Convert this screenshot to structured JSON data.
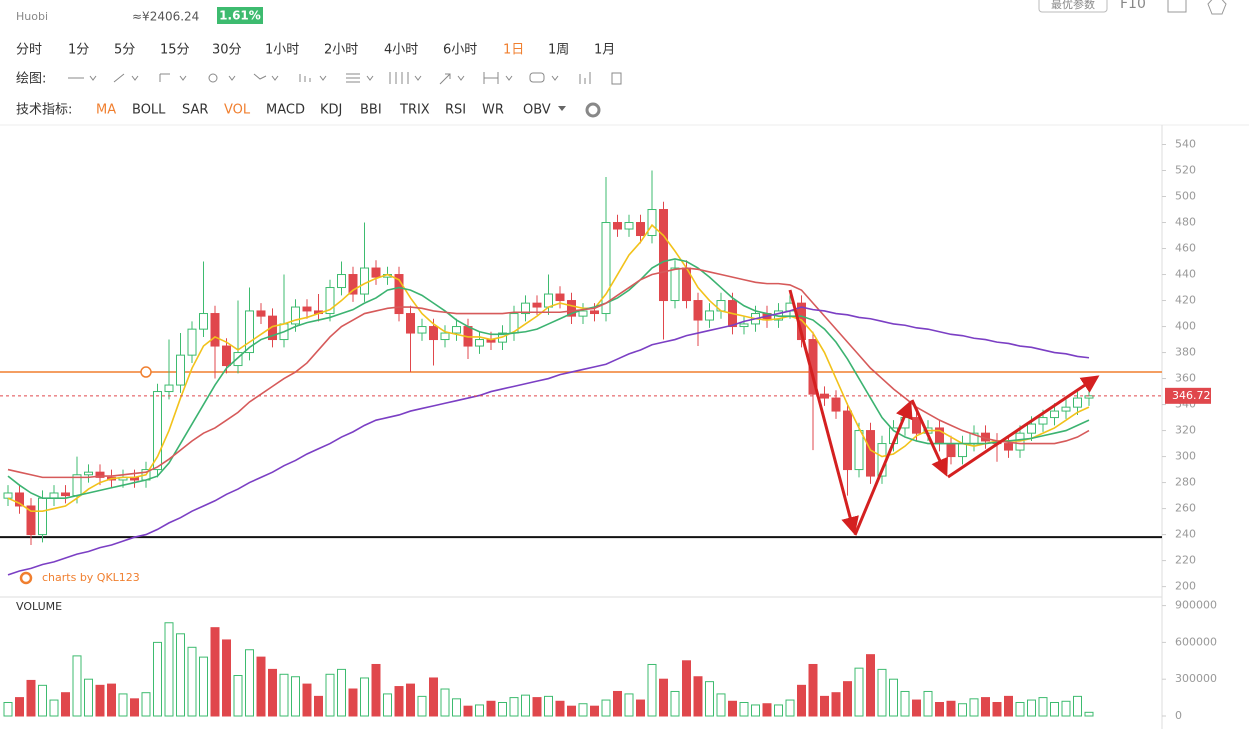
{
  "header": {
    "exchange": "Huobi",
    "price_cny": "≈¥2406.24",
    "change": "1.61%",
    "button": "最优参数",
    "f10": "F10"
  },
  "toolbar": {
    "periods": [
      "分时",
      "1分",
      "5分",
      "15分",
      "30分",
      "1小时",
      "2小时",
      "4小时",
      "6小时",
      "1日",
      "1周",
      "1月"
    ],
    "active_period": 9,
    "draw_label": "绘图:",
    "indicator_label": "技术指标:",
    "indicators": [
      "MA",
      "BOLL",
      "SAR",
      "VOL",
      "MACD",
      "KDJ",
      "BBI",
      "TRIX",
      "RSI",
      "WR",
      "OBV"
    ],
    "active_indicators": [
      0,
      3
    ]
  },
  "chart_data": [
    {
      "type": "candlestick",
      "watermark": "charts by QKL123",
      "up_color": "#3dbb6f",
      "down_color": "#e0474c",
      "ylim": [
        192,
        555
      ],
      "yticks": [
        200,
        220,
        240,
        260,
        280,
        300,
        320,
        340,
        360,
        380,
        400,
        420,
        440,
        460,
        480,
        500,
        520,
        540
      ],
      "grid": false,
      "open": [
        268,
        272,
        262,
        240,
        268,
        272,
        270,
        286,
        288,
        284,
        282,
        284,
        282,
        290,
        350,
        355,
        378,
        398,
        410,
        385,
        370,
        380,
        412,
        408,
        390,
        402,
        415,
        412,
        410,
        430,
        440,
        425,
        445,
        438,
        440,
        410,
        395,
        400,
        390,
        395,
        400,
        385,
        390,
        388,
        395,
        410,
        418,
        415,
        425,
        420,
        408,
        412,
        410,
        480,
        475,
        480,
        470,
        490,
        420,
        445,
        420,
        405,
        412,
        420,
        400,
        402,
        410,
        405,
        412,
        418,
        390,
        348,
        345,
        335,
        290,
        320,
        285,
        310,
        322,
        330,
        318,
        322,
        310,
        300,
        310,
        318,
        312,
        310,
        305,
        318,
        325,
        330,
        335,
        338,
        345
      ],
      "high": [
        278,
        278,
        268,
        274,
        278,
        278,
        300,
        294,
        294,
        290,
        290,
        290,
        296,
        356,
        390,
        395,
        404,
        450,
        416,
        391,
        420,
        430,
        418,
        414,
        440,
        421,
        421,
        425,
        436,
        450,
        446,
        480,
        451,
        446,
        446,
        416,
        406,
        406,
        401,
        406,
        406,
        396,
        396,
        401,
        416,
        424,
        424,
        440,
        431,
        426,
        418,
        418,
        515,
        486,
        486,
        486,
        520,
        496,
        451,
        451,
        426,
        418,
        426,
        426,
        408,
        416,
        416,
        418,
        424,
        424,
        396,
        354,
        351,
        341,
        326,
        326,
        316,
        328,
        336,
        336,
        328,
        328,
        316,
        316,
        324,
        324,
        318,
        316,
        324,
        331,
        336,
        341,
        344,
        351,
        352
      ],
      "low": [
        262,
        256,
        232,
        234,
        262,
        264,
        264,
        280,
        278,
        276,
        276,
        276,
        276,
        284,
        344,
        349,
        372,
        392,
        360,
        364,
        364,
        374,
        402,
        384,
        384,
        396,
        406,
        404,
        404,
        424,
        419,
        419,
        432,
        432,
        404,
        365,
        389,
        370,
        384,
        389,
        375,
        379,
        382,
        382,
        389,
        404,
        409,
        409,
        414,
        402,
        402,
        404,
        404,
        469,
        469,
        464,
        464,
        390,
        414,
        414,
        385,
        399,
        406,
        394,
        394,
        396,
        399,
        399,
        406,
        384,
        305,
        339,
        329,
        270,
        284,
        279,
        279,
        304,
        316,
        312,
        312,
        304,
        294,
        294,
        304,
        306,
        296,
        299,
        299,
        312,
        319,
        324,
        329,
        332,
        339
      ],
      "close": [
        272,
        262,
        240,
        268,
        272,
        270,
        286,
        288,
        284,
        282,
        284,
        282,
        290,
        350,
        355,
        378,
        398,
        410,
        385,
        370,
        380,
        412,
        408,
        390,
        402,
        415,
        412,
        410,
        430,
        440,
        425,
        445,
        438,
        440,
        410,
        395,
        400,
        390,
        395,
        400,
        385,
        390,
        388,
        395,
        410,
        418,
        415,
        425,
        420,
        408,
        412,
        410,
        480,
        475,
        480,
        470,
        490,
        420,
        445,
        420,
        405,
        412,
        420,
        400,
        402,
        410,
        405,
        412,
        418,
        390,
        348,
        345,
        335,
        290,
        320,
        285,
        310,
        322,
        330,
        318,
        322,
        310,
        300,
        310,
        318,
        312,
        310,
        305,
        318,
        325,
        330,
        335,
        338,
        345,
        346.72
      ],
      "series": [
        {
          "color": "#f2c21b",
          "values": [
            268,
            264,
            258,
            258,
            260,
            262,
            268,
            275,
            280,
            283,
            284,
            284,
            286,
            300,
            320,
            345,
            368,
            385,
            392,
            388,
            382,
            388,
            394,
            400,
            402,
            405,
            407,
            410,
            413,
            420,
            428,
            433,
            437,
            440,
            436,
            422,
            410,
            402,
            396,
            394,
            392,
            392,
            390,
            392,
            396,
            402,
            408,
            415,
            418,
            416,
            414,
            414,
            425,
            440,
            455,
            465,
            478,
            470,
            458,
            445,
            430,
            420,
            412,
            410,
            408,
            406,
            405,
            406,
            408,
            405,
            395,
            380,
            360,
            340,
            322,
            305,
            300,
            302,
            308,
            316,
            320,
            320,
            315,
            310,
            308,
            310,
            312,
            312,
            312,
            314,
            318,
            322,
            328,
            334,
            338
          ]
        },
        {
          "color": "#3cb371",
          "values": [
            285,
            278,
            272,
            268,
            268,
            268,
            270,
            272,
            274,
            276,
            278,
            280,
            282,
            285,
            295,
            310,
            325,
            340,
            355,
            368,
            376,
            384,
            390,
            393,
            396,
            400,
            403,
            405,
            407,
            410,
            413,
            418,
            422,
            428,
            430,
            428,
            424,
            418,
            412,
            405,
            400,
            396,
            394,
            394,
            395,
            396,
            398,
            402,
            406,
            410,
            413,
            415,
            418,
            422,
            428,
            436,
            445,
            450,
            452,
            450,
            445,
            438,
            430,
            422,
            416,
            412,
            410,
            408,
            408,
            408,
            405,
            398,
            388,
            375,
            360,
            345,
            330,
            320,
            315,
            312,
            310,
            310,
            310,
            310,
            310,
            310,
            311,
            312,
            313,
            314,
            316,
            318,
            320,
            324,
            328
          ]
        },
        {
          "color": "#d65a5a",
          "values": [
            290,
            288,
            286,
            284,
            284,
            284,
            284,
            284,
            285,
            285,
            286,
            287,
            288,
            292,
            298,
            305,
            312,
            318,
            322,
            328,
            334,
            342,
            348,
            354,
            360,
            365,
            372,
            382,
            392,
            400,
            405,
            410,
            412,
            414,
            415,
            415,
            414,
            412,
            411,
            410,
            410,
            410,
            410,
            410,
            411,
            411,
            411,
            411,
            411,
            412,
            413,
            414,
            418,
            424,
            430,
            436,
            440,
            442,
            444,
            445,
            444,
            442,
            440,
            438,
            436,
            434,
            433,
            433,
            432,
            428,
            418,
            408,
            398,
            388,
            378,
            368,
            360,
            352,
            345,
            338,
            333,
            328,
            324,
            320,
            317,
            314,
            312,
            311,
            310,
            310,
            310,
            310,
            312,
            315,
            320
          ]
        },
        {
          "color": "#7b3fc4",
          "values": [
            209,
            212,
            214,
            217,
            219,
            222,
            225,
            227,
            230,
            232,
            235,
            238,
            240,
            244,
            249,
            253,
            258,
            262,
            266,
            271,
            275,
            280,
            284,
            288,
            293,
            297,
            302,
            306,
            310,
            315,
            319,
            324,
            328,
            330,
            332,
            335,
            337,
            339,
            341,
            343,
            345,
            347,
            350,
            352,
            354,
            356,
            358,
            360,
            363,
            365,
            367,
            369,
            371,
            375,
            379,
            382,
            386,
            388,
            390,
            393,
            395,
            397,
            399,
            401,
            404,
            406,
            408,
            410,
            412,
            415,
            413,
            412,
            410,
            409,
            407,
            406,
            404,
            402,
            401,
            399,
            398,
            396,
            394,
            393,
            391,
            390,
            388,
            387,
            385,
            384,
            382,
            380,
            379,
            377,
            376
          ]
        }
      ],
      "hlines": [
        {
          "value": 365,
          "color": "#f07f2f"
        },
        {
          "value": 238,
          "color": "#111111"
        }
      ]
    },
    {
      "type": "bar",
      "title": "VOLUME",
      "ylim": [
        0,
        970000
      ],
      "yticks": [
        0,
        300000,
        600000,
        900000
      ],
      "values": [
        110000,
        150000,
        290000,
        250000,
        130000,
        190000,
        490000,
        300000,
        250000,
        260000,
        180000,
        140000,
        190000,
        600000,
        760000,
        670000,
        560000,
        480000,
        720000,
        620000,
        330000,
        540000,
        480000,
        380000,
        340000,
        320000,
        260000,
        160000,
        340000,
        380000,
        220000,
        310000,
        420000,
        180000,
        240000,
        260000,
        160000,
        310000,
        220000,
        140000,
        80000,
        90000,
        120000,
        110000,
        150000,
        170000,
        150000,
        160000,
        120000,
        80000,
        100000,
        80000,
        130000,
        200000,
        180000,
        130000,
        420000,
        300000,
        200000,
        450000,
        320000,
        280000,
        180000,
        120000,
        110000,
        90000,
        100000,
        90000,
        130000,
        250000,
        420000,
        160000,
        190000,
        280000,
        390000,
        500000,
        380000,
        300000,
        200000,
        130000,
        200000,
        110000,
        120000,
        100000,
        140000,
        150000,
        110000,
        160000,
        110000,
        130000,
        150000,
        110000,
        120000,
        160000,
        30000
      ]
    }
  ]
}
